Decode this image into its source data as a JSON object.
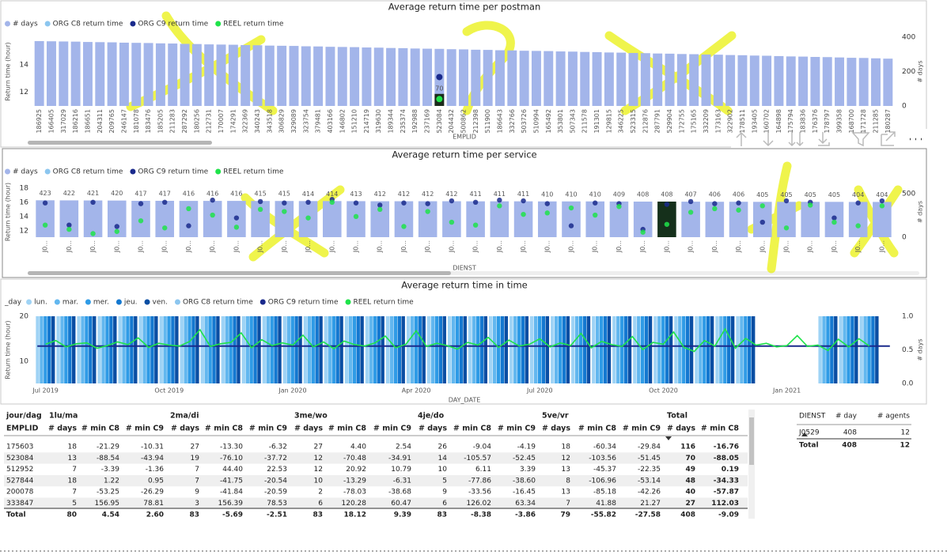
{
  "chart_data": [
    {
      "type": "bar",
      "title": "Average return time per postman",
      "ylabel": "Return time (hour)",
      "y2label": "# days",
      "xlabel": "EMPLID",
      "categories": [
        "186925",
        "166405",
        "317029",
        "186216",
        "186651",
        "204311",
        "209765",
        "246147",
        "181078",
        "183476",
        "185205",
        "211283",
        "287292",
        "180256",
        "212731",
        "170007",
        "174291",
        "322369",
        "340243",
        "343518",
        "306829",
        "329089",
        "323754",
        "379481",
        "403166",
        "146802",
        "151210",
        "214719",
        "319630",
        "189344",
        "235374",
        "192988",
        "237169",
        "523084",
        "204432",
        "500862",
        "212398",
        "511900",
        "186643",
        "332766",
        "503726",
        "510994",
        "165492",
        "353801",
        "507343",
        "211578",
        "191301",
        "129815",
        "346225",
        "523315",
        "212876",
        "287791",
        "529904",
        "172755",
        "175165",
        "332209",
        "173163",
        "322902",
        "178511",
        "193405",
        "160702",
        "164898",
        "175794",
        "183836",
        "176376",
        "178797",
        "399358",
        "168700",
        "171728",
        "211285",
        "180287"
      ],
      "ylim": [
        11,
        16
      ],
      "yticks": [
        12,
        14
      ],
      "y2lim": [
        0,
        400
      ],
      "y2ticks": [
        0,
        200,
        400
      ],
      "series": [
        {
          "name": "# days",
          "color": "#a3b5ea",
          "axis": "y2",
          "values": [
            377,
            376,
            375,
            374,
            372,
            371,
            370,
            368,
            367,
            366,
            364,
            363,
            361,
            360,
            358,
            357,
            356,
            354,
            353,
            351,
            350,
            349,
            347,
            346,
            344,
            343,
            342,
            340,
            339,
            337,
            336,
            334,
            333,
            332,
            330,
            329,
            327,
            326,
            324,
            323,
            321,
            320,
            319,
            317,
            316,
            314,
            313,
            311,
            310,
            308,
            307,
            305,
            304,
            302,
            301,
            299,
            298,
            296,
            295,
            293,
            292,
            290,
            288,
            287,
            285,
            284,
            282,
            280,
            279,
            277,
            275
          ]
        },
        {
          "name": "ORG C8 return time",
          "color": "#8cc6ef"
        },
        {
          "name": "ORG C9 return time",
          "color": "#1a2a8c"
        },
        {
          "name": "REEL return time",
          "color": "#1fe34a"
        }
      ],
      "highlight": {
        "category": "523084",
        "value": 70,
        "color": "#1c2b1c",
        "points": [
          {
            "series": 2,
            "value": 13.1
          },
          {
            "series": 3,
            "value": 11.5
          }
        ]
      }
    },
    {
      "type": "bar",
      "title": "Average return time per service",
      "ylabel": "Return time (hour)",
      "y2label": "# days",
      "xlabel": "DIENST",
      "categories": [
        "J0...",
        "J0...",
        "J0...",
        "J0...",
        "J0...",
        "J0...",
        "J0...",
        "J0...",
        "J0...",
        "J0...",
        "J0...",
        "J0...",
        "J0...",
        "J0...",
        "J0...",
        "J0...",
        "J0...",
        "J0...",
        "J0...",
        "J0...",
        "J0...",
        "J0...",
        "J0...",
        "J0...",
        "J0...",
        "J0...",
        "J0...",
        "J0...",
        "J0...",
        "J0...",
        "J0...",
        "J0...",
        "J0...",
        "J0...",
        "J0...",
        "J0..."
      ],
      "ylim": [
        11.1,
        18.2
      ],
      "yticks": [
        12,
        14,
        16,
        18
      ],
      "y2lim": [
        0,
        580
      ],
      "y2ticks": [
        0,
        500
      ],
      "data_labels": true,
      "series": [
        {
          "name": "# days",
          "color": "#a3b5ea",
          "axis": "y2",
          "values": [
            423,
            422,
            421,
            420,
            417,
            417,
            416,
            416,
            416,
            415,
            415,
            414,
            414,
            413,
            412,
            412,
            412,
            412,
            411,
            411,
            411,
            410,
            410,
            410,
            409,
            408,
            408,
            407,
            406,
            406,
            405,
            405,
            405,
            405,
            404,
            404
          ]
        },
        {
          "name": "ORG C8 return time",
          "color": "#8cc6ef"
        },
        {
          "name": "ORG C9 return time",
          "color": "#1a2a8c",
          "values": [
            15.9,
            12.8,
            16.0,
            12.6,
            15.8,
            16.0,
            12.7,
            16.3,
            13.8,
            16.1,
            15.9,
            16.0,
            16.4,
            15.9,
            15.6,
            15.9,
            15.8,
            16.2,
            16.0,
            16.3,
            16.2,
            15.8,
            12.7,
            15.9,
            15.8,
            12.2,
            15.7,
            16.1,
            15.8,
            15.9,
            13.2,
            16.2,
            16.0,
            13.8,
            15.9,
            16.2
          ]
        },
        {
          "name": "REEL return time",
          "color": "#1fe34a",
          "values": [
            12.8,
            12.2,
            11.6,
            11.9,
            13.4,
            12.4,
            15.1,
            14.2,
            12.5,
            15.0,
            14.7,
            13.8,
            16.0,
            14.0,
            15.0,
            12.6,
            14.7,
            13.2,
            12.8,
            15.5,
            14.3,
            14.5,
            15.2,
            14.2,
            15.4,
            11.8,
            12.9,
            14.6,
            15.1,
            14.9,
            15.5,
            12.4,
            15.6,
            13.2,
            12.7,
            15.5
          ]
        }
      ],
      "highlight": {
        "index": 26,
        "color": "#15301b"
      }
    },
    {
      "type": "line",
      "title": "Average return time in time",
      "legend_title": "_day",
      "ylabel": "Return time (hour)",
      "y2label": "# days",
      "xlabel": "DAY_DATE",
      "xlim": [
        -0.3,
        20.6
      ],
      "xticks": [
        {
          "value": 0,
          "label": "Jul 2019"
        },
        {
          "value": 3,
          "label": "Oct 2019"
        },
        {
          "value": 6,
          "label": "Jan 2020"
        },
        {
          "value": 9,
          "label": "Apr 2020"
        },
        {
          "value": 12,
          "label": "Jul 2020"
        },
        {
          "value": 15,
          "label": "Oct 2020"
        },
        {
          "value": 18,
          "label": "Jan 2021"
        }
      ],
      "ylim": [
        5.1,
        20
      ],
      "yticks": [
        10,
        20
      ],
      "y2lim": [
        0,
        1
      ],
      "y2ticks": [
        {
          "value": 0,
          "label": "0.0"
        },
        {
          "value": 0.5,
          "label": "0.5"
        },
        {
          "value": 1,
          "label": "1.0"
        }
      ],
      "bar_x": [
        0,
        0.5,
        1,
        1.5,
        2,
        2.5,
        3,
        3.5,
        4,
        4.5,
        5,
        5.5,
        6,
        6.5,
        7,
        7.5,
        8,
        8.5,
        9,
        9.5,
        10,
        10.5,
        11,
        11.5,
        12,
        12.5,
        13,
        13.5,
        14,
        14.5,
        15,
        15.5,
        16,
        16.5,
        17,
        17.5,
        18,
        18.5,
        19,
        19.5,
        20
      ],
      "bar_series": [
        {
          "name": "lun.",
          "color": "#9fd3f5",
          "values": [
            1,
            1,
            1,
            1,
            1,
            1,
            1,
            1,
            1,
            1,
            1,
            1,
            1,
            1,
            1,
            1,
            1,
            1,
            1,
            1,
            1,
            1,
            1,
            1,
            1,
            1,
            1,
            1,
            1,
            1,
            1,
            1,
            1,
            1,
            1,
            0,
            0,
            0,
            1,
            1,
            1
          ]
        },
        {
          "name": "mar.",
          "color": "#62b7ef",
          "values": [
            1,
            1,
            1,
            1,
            1,
            1,
            1,
            1,
            1,
            1,
            1,
            1,
            1,
            1,
            1,
            1,
            1,
            1,
            1,
            1,
            1,
            1,
            1,
            1,
            1,
            1,
            1,
            1,
            1,
            1,
            1,
            1,
            1,
            1,
            1,
            0,
            0,
            0,
            1,
            1,
            1
          ]
        },
        {
          "name": "mer.",
          "color": "#2f9be6",
          "values": [
            1,
            1,
            1,
            1,
            1,
            1,
            1,
            1,
            1,
            1,
            1,
            1,
            1,
            1,
            1,
            1,
            1,
            1,
            1,
            1,
            1,
            1,
            1,
            1,
            1,
            1,
            1,
            1,
            1,
            1,
            1,
            1,
            1,
            1,
            1,
            0,
            0,
            0,
            1,
            1,
            1
          ]
        },
        {
          "name": "jeu.",
          "color": "#1478d0",
          "values": [
            1,
            1,
            1,
            1,
            1,
            1,
            1,
            1,
            1,
            1,
            1,
            1,
            1,
            1,
            1,
            1,
            1,
            1,
            1,
            1,
            1,
            1,
            1,
            1,
            1,
            1,
            1,
            1,
            1,
            1,
            1,
            1,
            1,
            1,
            1,
            0,
            0,
            0,
            1,
            1,
            1
          ]
        },
        {
          "name": "ven.",
          "color": "#0a4ea3",
          "values": [
            1,
            1,
            1,
            1,
            1,
            1,
            1,
            1,
            1,
            1,
            1,
            1,
            1,
            1,
            1,
            1,
            1,
            1,
            1,
            1,
            1,
            1,
            1,
            1,
            1,
            1,
            1,
            1,
            1,
            1,
            1,
            1,
            1,
            1,
            1,
            0,
            0,
            0,
            1,
            1,
            1
          ]
        }
      ],
      "series": [
        {
          "name": "ORG C8 return time",
          "color": "#8cc6ef"
        },
        {
          "name": "ORG C9 return time",
          "color": "#1a2a8c",
          "x": [
            -0.2,
            20.5
          ],
          "values": [
            13.4,
            13.4
          ]
        },
        {
          "name": "REEL return time",
          "color": "#1fe34a",
          "x": [
            0,
            0.25,
            0.5,
            0.75,
            1,
            1.25,
            1.5,
            1.75,
            2,
            2.25,
            2.5,
            2.75,
            3,
            3.25,
            3.5,
            3.75,
            4,
            4.25,
            4.5,
            4.75,
            5,
            5.25,
            5.5,
            5.75,
            6,
            6.25,
            6.5,
            6.75,
            7,
            7.25,
            7.5,
            7.75,
            8,
            8.25,
            8.5,
            8.75,
            9,
            9.25,
            9.5,
            9.75,
            10,
            10.25,
            10.5,
            10.75,
            11,
            11.25,
            11.5,
            11.75,
            12,
            12.25,
            12.5,
            12.75,
            13,
            13.25,
            13.5,
            13.75,
            14,
            14.25,
            14.5,
            14.75,
            15,
            15.25,
            15.5,
            15.75,
            16,
            16.25,
            16.5,
            16.75,
            17,
            17.25,
            17.5,
            17.75,
            18,
            18.25,
            18.5,
            18.75,
            19,
            19.25,
            19.5,
            19.75,
            20
          ],
          "values": [
            13.8,
            14.6,
            13.2,
            13.9,
            14.1,
            12.9,
            13.5,
            14.3,
            13.7,
            15.2,
            13.1,
            14.0,
            13.6,
            13.4,
            14.4,
            17.0,
            13.3,
            13.9,
            14.2,
            16.3,
            13.0,
            14.8,
            13.5,
            14.1,
            13.6,
            15.8,
            13.2,
            14.3,
            12.8,
            14.5,
            13.7,
            13.4,
            14.1,
            15.6,
            13.0,
            13.8,
            16.8,
            13.3,
            14.0,
            13.5,
            12.7,
            14.2,
            13.6,
            15.3,
            13.1,
            14.7,
            13.4,
            13.8,
            15.0,
            13.2,
            14.1,
            13.5,
            16.2,
            13.0,
            14.4,
            13.7,
            13.3,
            15.5,
            12.6,
            14.2,
            13.8,
            16.5,
            13.1,
            12.2,
            14.6,
            13.4,
            17.2,
            12.9,
            15.1,
            13.6,
            14.0,
            13.2,
            13.5,
            15.7,
            13.3,
            13.6,
            12.4,
            14.9,
            13.2,
            15.0,
            13.4
          ]
        }
      ]
    }
  ],
  "matrix": {
    "corner": [
      "jour/dag",
      "EMPLID"
    ],
    "groups": [
      "1lu/ma",
      "2ma/di",
      "3me/wo",
      "4je/do",
      "5ve/vr",
      "Total"
    ],
    "columns": [
      "# days",
      "# min C8",
      "# min C9",
      "# days",
      "# min C8",
      "# min C9",
      "# days",
      "# min C8",
      "# min C9",
      "# days",
      "# min C8",
      "# min C9",
      "# days",
      "# min C8",
      "# min C9",
      "# days",
      "# min C8"
    ],
    "rows": [
      [
        "175603",
        "18",
        "-21.29",
        "-10.31",
        "27",
        "-13.30",
        "-6.32",
        "27",
        "4.40",
        "2.54",
        "26",
        "-9.04",
        "-4.19",
        "18",
        "-60.34",
        "-29.84",
        "116",
        "-16.76"
      ],
      [
        "523084",
        "13",
        "-88.54",
        "-43.94",
        "19",
        "-76.10",
        "-37.72",
        "12",
        "-70.48",
        "-34.91",
        "14",
        "-105.57",
        "-52.45",
        "12",
        "-103.56",
        "-51.45",
        "70",
        "-88.05"
      ],
      [
        "512952",
        "7",
        "-3.39",
        "-1.36",
        "7",
        "44.40",
        "22.53",
        "12",
        "20.92",
        "10.79",
        "10",
        "6.11",
        "3.39",
        "13",
        "-45.37",
        "-22.35",
        "49",
        "0.19"
      ],
      [
        "527844",
        "18",
        "1.22",
        "0.95",
        "7",
        "-41.75",
        "-20.54",
        "10",
        "-13.29",
        "-6.31",
        "5",
        "-77.86",
        "-38.60",
        "8",
        "-106.96",
        "-53.14",
        "48",
        "-34.33"
      ],
      [
        "200078",
        "7",
        "-53.25",
        "-26.29",
        "9",
        "-41.84",
        "-20.59",
        "2",
        "-78.03",
        "-38.68",
        "9",
        "-33.56",
        "-16.45",
        "13",
        "-85.18",
        "-42.26",
        "40",
        "-57.87"
      ],
      [
        "333847",
        "5",
        "156.95",
        "78.81",
        "3",
        "156.39",
        "78.53",
        "6",
        "120.28",
        "60.47",
        "6",
        "126.02",
        "63.34",
        "7",
        "41.88",
        "21.27",
        "27",
        "112.03"
      ]
    ],
    "total_row": [
      "Total",
      "80",
      "4.54",
      "2.60",
      "83",
      "-5.69",
      "-2.51",
      "83",
      "18.12",
      "9.39",
      "83",
      "-8.38",
      "-3.86",
      "79",
      "-55.82",
      "-27.58",
      "408",
      "-9.09"
    ]
  },
  "dienst_table": {
    "columns": [
      "DIENST",
      "# day",
      "# agents"
    ],
    "rows": [
      [
        "J0529",
        "408",
        "12"
      ]
    ],
    "total_row": [
      "Total",
      "408",
      "12"
    ]
  }
}
